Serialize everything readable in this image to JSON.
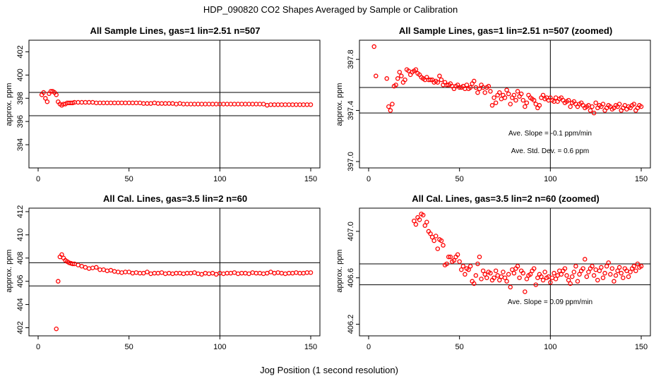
{
  "figure": {
    "title": "HDP_090820  CO2 Shapes Averaged by Sample or Calibration",
    "xlabel": "Jog Position (1 second resolution)"
  },
  "chart_data": [
    {
      "type": "scatter",
      "title": "All Sample Lines, gas=1 lin=2.51 n=507",
      "xlabel": "",
      "ylabel": "approx. ppm",
      "xlim": [
        0,
        150
      ],
      "ylim": [
        392,
        403
      ],
      "xticks": [
        0,
        50,
        100,
        150
      ],
      "xtick_labels": [
        "0",
        "50",
        "100",
        "150"
      ],
      "yticks": [
        394,
        396,
        398,
        400,
        402
      ],
      "ytick_labels": [
        "394",
        "396",
        "398",
        "400",
        "402"
      ],
      "vline": 100,
      "hlines": [
        398.5,
        396.5
      ],
      "point_color": "#ff0000",
      "annotations": [],
      "x": [
        2,
        3,
        4,
        5,
        6,
        7,
        8,
        9,
        10,
        11,
        12,
        13,
        14,
        15,
        16,
        17,
        18,
        19,
        20,
        22,
        24,
        26,
        28,
        30,
        32,
        34,
        36,
        38,
        40,
        42,
        44,
        46,
        48,
        50,
        52,
        54,
        56,
        58,
        60,
        62,
        64,
        66,
        68,
        70,
        72,
        74,
        76,
        78,
        80,
        82,
        84,
        86,
        88,
        90,
        92,
        94,
        96,
        98,
        100,
        102,
        104,
        106,
        108,
        110,
        112,
        114,
        116,
        118,
        120,
        122,
        124,
        126,
        128,
        130,
        132,
        134,
        136,
        138,
        140,
        142,
        144,
        146,
        148,
        150
      ],
      "y": [
        398.3,
        398.5,
        398.0,
        397.7,
        398.4,
        398.6,
        398.6,
        398.5,
        398.3,
        397.7,
        397.5,
        397.4,
        397.5,
        397.5,
        397.6,
        397.6,
        397.6,
        397.6,
        397.65,
        397.65,
        397.65,
        397.65,
        397.65,
        397.65,
        397.6,
        397.6,
        397.6,
        397.6,
        397.6,
        397.6,
        397.6,
        397.6,
        397.6,
        397.6,
        397.6,
        397.6,
        397.6,
        397.55,
        397.55,
        397.55,
        397.6,
        397.55,
        397.55,
        397.55,
        397.55,
        397.55,
        397.5,
        397.55,
        397.5,
        397.5,
        397.5,
        397.5,
        397.5,
        397.5,
        397.5,
        397.5,
        397.5,
        397.5,
        397.5,
        397.5,
        397.5,
        397.5,
        397.5,
        397.5,
        397.5,
        397.5,
        397.5,
        397.5,
        397.5,
        397.5,
        397.5,
        397.4,
        397.45,
        397.45,
        397.45,
        397.45,
        397.45,
        397.45,
        397.45,
        397.45,
        397.45,
        397.45,
        397.45,
        397.45
      ]
    },
    {
      "type": "scatter",
      "title": "All Sample Lines, gas=1 lin=2.51 n=507 (zoomed)",
      "xlabel": "",
      "ylabel": "approx. ppm",
      "xlim": [
        0,
        150
      ],
      "ylim": [
        396.95,
        397.95
      ],
      "xticks": [
        0,
        50,
        100,
        150
      ],
      "xtick_labels": [
        "0",
        "50",
        "100",
        "150"
      ],
      "yticks": [
        397.0,
        397.4,
        397.8
      ],
      "ytick_labels": [
        "397.0",
        "397.4",
        "397.8"
      ],
      "vline": 100,
      "hlines": [
        397.58,
        397.38
      ],
      "point_color": "#ff0000",
      "annotations": [
        "Ave. Slope =  -0.1  ppm/min",
        "Ave. Std. Dev. =  0.6  ppm"
      ],
      "x": [
        3,
        4,
        10,
        11,
        12,
        13,
        14,
        15,
        16,
        17,
        18,
        19,
        20,
        21,
        22,
        23,
        24,
        25,
        26,
        27,
        28,
        29,
        30,
        31,
        32,
        33,
        34,
        35,
        36,
        37,
        38,
        39,
        40,
        41,
        42,
        43,
        44,
        45,
        46,
        47,
        48,
        49,
        50,
        51,
        52,
        53,
        54,
        55,
        56,
        57,
        58,
        59,
        60,
        61,
        62,
        63,
        64,
        65,
        66,
        67,
        68,
        69,
        70,
        71,
        72,
        73,
        74,
        75,
        76,
        77,
        78,
        79,
        80,
        81,
        82,
        83,
        84,
        85,
        86,
        87,
        88,
        89,
        90,
        91,
        92,
        93,
        94,
        95,
        96,
        97,
        98,
        99,
        100,
        101,
        102,
        103,
        104,
        105,
        106,
        107,
        108,
        109,
        110,
        111,
        112,
        113,
        114,
        115,
        116,
        117,
        118,
        119,
        120,
        121,
        122,
        123,
        124,
        125,
        126,
        127,
        128,
        129,
        130,
        131,
        132,
        133,
        134,
        135,
        136,
        137,
        138,
        139,
        140,
        141,
        142,
        143,
        144,
        145,
        146,
        147,
        148,
        149,
        150
      ],
      "y": [
        397.9,
        397.67,
        397.65,
        397.43,
        397.4,
        397.45,
        397.59,
        397.6,
        397.65,
        397.7,
        397.67,
        397.62,
        397.64,
        397.72,
        397.71,
        397.68,
        397.7,
        397.71,
        397.72,
        397.69,
        397.68,
        397.66,
        397.65,
        397.64,
        397.66,
        397.64,
        397.64,
        397.64,
        397.62,
        397.63,
        397.62,
        397.67,
        397.64,
        397.6,
        397.62,
        397.6,
        397.6,
        397.61,
        397.59,
        397.57,
        397.59,
        397.6,
        397.58,
        397.58,
        397.59,
        397.57,
        397.6,
        397.57,
        397.58,
        397.61,
        397.63,
        397.58,
        397.54,
        397.57,
        397.6,
        397.58,
        397.54,
        397.58,
        397.59,
        397.55,
        397.44,
        397.5,
        397.46,
        397.52,
        397.54,
        397.49,
        397.52,
        397.5,
        397.56,
        397.53,
        397.45,
        397.5,
        397.52,
        397.48,
        397.55,
        397.51,
        397.53,
        397.48,
        397.43,
        397.46,
        397.52,
        397.5,
        397.49,
        397.48,
        397.45,
        397.42,
        397.44,
        397.5,
        397.52,
        397.49,
        397.5,
        397.48,
        397.5,
        397.48,
        397.47,
        397.5,
        397.47,
        397.49,
        397.5,
        397.48,
        397.46,
        397.47,
        397.48,
        397.43,
        397.46,
        397.47,
        397.45,
        397.43,
        397.45,
        397.46,
        397.44,
        397.42,
        397.43,
        397.44,
        397.4,
        397.43,
        397.38,
        397.46,
        397.42,
        397.44,
        397.43,
        397.45,
        397.4,
        397.42,
        397.44,
        397.43,
        397.41,
        397.42,
        397.44,
        397.43,
        397.45,
        397.4,
        397.42,
        397.44,
        397.41,
        397.43,
        397.42,
        397.44,
        397.45,
        397.4,
        397.42,
        397.44,
        397.43
      ]
    },
    {
      "type": "scatter",
      "title": "All Cal. Lines, gas=3.5 lin=2 n=60",
      "xlabel": "",
      "ylabel": "approx. ppm",
      "xlim": [
        0,
        150
      ],
      "ylim": [
        401.3,
        412.3
      ],
      "xticks": [
        0,
        50,
        100,
        150
      ],
      "xtick_labels": [
        "0",
        "50",
        "100",
        "150"
      ],
      "yticks": [
        402,
        404,
        406,
        408,
        410,
        412
      ],
      "ytick_labels": [
        "402",
        "404",
        "406",
        "408",
        "410",
        "412"
      ],
      "vline": 100,
      "hlines": [
        407.6,
        405.6
      ],
      "point_color": "#ff0000",
      "annotations": [],
      "x": [
        10,
        11,
        12,
        13,
        14,
        15,
        16,
        17,
        18,
        19,
        20,
        22,
        24,
        26,
        28,
        30,
        32,
        34,
        36,
        38,
        40,
        42,
        44,
        46,
        48,
        50,
        52,
        54,
        56,
        58,
        60,
        62,
        64,
        66,
        68,
        70,
        72,
        74,
        76,
        78,
        80,
        82,
        84,
        86,
        88,
        90,
        92,
        94,
        96,
        98,
        100,
        102,
        104,
        106,
        108,
        110,
        112,
        114,
        116,
        118,
        120,
        122,
        124,
        126,
        128,
        130,
        132,
        134,
        136,
        138,
        140,
        142,
        144,
        146,
        148,
        150
      ],
      "y": [
        401.9,
        406.0,
        408.1,
        408.3,
        408.0,
        407.8,
        407.7,
        407.6,
        407.55,
        407.5,
        407.5,
        407.4,
        407.3,
        407.2,
        407.1,
        407.15,
        407.2,
        407.0,
        407.0,
        406.9,
        406.95,
        406.85,
        406.8,
        406.75,
        406.8,
        406.8,
        406.7,
        406.75,
        406.7,
        406.7,
        406.8,
        406.65,
        406.7,
        406.7,
        406.75,
        406.65,
        406.7,
        406.65,
        406.7,
        406.7,
        406.65,
        406.7,
        406.7,
        406.75,
        406.65,
        406.6,
        406.7,
        406.65,
        406.7,
        406.6,
        406.7,
        406.65,
        406.7,
        406.7,
        406.75,
        406.65,
        406.7,
        406.7,
        406.65,
        406.75,
        406.7,
        406.7,
        406.65,
        406.7,
        406.8,
        406.7,
        406.75,
        406.7,
        406.65,
        406.7,
        406.7,
        406.75,
        406.7,
        406.7,
        406.75,
        406.75
      ]
    },
    {
      "type": "scatter",
      "title": "All Cal. Lines, gas=3.5 lin=2 n=60 (zoomed)",
      "xlabel": "",
      "ylabel": "approx. ppm",
      "xlim": [
        0,
        150
      ],
      "ylim": [
        406.1,
        407.2
      ],
      "xticks": [
        0,
        50,
        100,
        150
      ],
      "xtick_labels": [
        "0",
        "50",
        "100",
        "150"
      ],
      "yticks": [
        406.2,
        406.6,
        407.0
      ],
      "ytick_labels": [
        "406.2",
        "406.6",
        "407.0"
      ],
      "vline": 100,
      "hlines": [
        406.72,
        406.54
      ],
      "point_color": "#ff0000",
      "annotations": [
        "Ave. Slope =  0.09  ppm/min"
      ],
      "x": [
        25,
        26,
        27,
        28,
        29,
        30,
        31,
        32,
        33,
        34,
        35,
        36,
        37,
        38,
        39,
        40,
        41,
        42,
        43,
        44,
        45,
        46,
        47,
        48,
        49,
        50,
        51,
        52,
        53,
        54,
        55,
        56,
        57,
        58,
        59,
        60,
        61,
        62,
        63,
        64,
        65,
        66,
        67,
        68,
        69,
        70,
        71,
        72,
        73,
        74,
        75,
        76,
        77,
        78,
        79,
        80,
        81,
        82,
        83,
        84,
        85,
        86,
        87,
        88,
        89,
        90,
        91,
        92,
        93,
        94,
        95,
        96,
        97,
        98,
        99,
        100,
        101,
        102,
        103,
        104,
        105,
        106,
        107,
        108,
        109,
        110,
        111,
        112,
        113,
        114,
        115,
        116,
        117,
        118,
        119,
        120,
        121,
        122,
        123,
        124,
        125,
        126,
        127,
        128,
        129,
        130,
        131,
        132,
        133,
        134,
        135,
        136,
        137,
        138,
        139,
        140,
        141,
        142,
        143,
        144,
        145,
        146,
        147,
        148,
        149,
        150
      ],
      "y": [
        407.09,
        407.06,
        407.12,
        407.1,
        407.15,
        407.14,
        407.05,
        407.08,
        407.0,
        406.98,
        406.95,
        406.92,
        406.96,
        406.85,
        406.93,
        406.92,
        406.88,
        406.71,
        406.72,
        406.78,
        406.78,
        406.74,
        406.75,
        406.78,
        406.8,
        406.74,
        406.67,
        406.7,
        406.63,
        406.68,
        406.67,
        406.7,
        406.57,
        406.55,
        406.62,
        406.72,
        406.78,
        406.59,
        406.66,
        406.63,
        406.6,
        406.65,
        406.64,
        406.58,
        406.6,
        406.66,
        406.62,
        406.58,
        406.61,
        406.65,
        406.6,
        406.57,
        406.63,
        406.52,
        406.67,
        406.64,
        406.68,
        406.7,
        406.6,
        406.66,
        406.64,
        406.48,
        406.59,
        406.62,
        406.63,
        406.66,
        406.68,
        406.54,
        406.6,
        406.63,
        406.61,
        406.58,
        406.65,
        406.6,
        406.61,
        406.56,
        406.6,
        406.64,
        406.59,
        406.62,
        406.66,
        406.63,
        406.66,
        406.68,
        406.62,
        406.58,
        406.55,
        406.61,
        406.65,
        406.7,
        406.57,
        406.63,
        406.66,
        406.68,
        406.76,
        406.61,
        406.65,
        406.68,
        406.7,
        406.62,
        406.67,
        406.58,
        406.66,
        406.69,
        406.6,
        406.64,
        406.7,
        406.73,
        406.63,
        406.68,
        406.57,
        406.62,
        406.66,
        406.69,
        406.64,
        406.6,
        406.68,
        406.66,
        406.61,
        406.65,
        406.68,
        406.7,
        406.66,
        406.72,
        406.69,
        406.7
      ]
    }
  ]
}
